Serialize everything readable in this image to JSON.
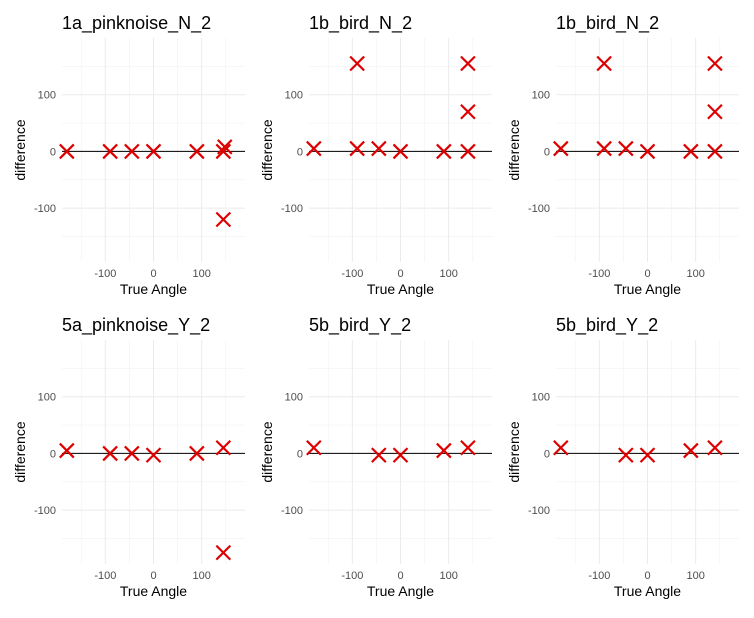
{
  "chart_data": [
    {
      "type": "scatter",
      "title": "1a_pinknoise_N_2",
      "xlabel": "True Angle",
      "ylabel": "difference",
      "xlim": [
        -190,
        190
      ],
      "ylim": [
        -195,
        200
      ],
      "x_ticks": [
        -100,
        0,
        100
      ],
      "y_ticks": [
        -100,
        0,
        100
      ],
      "reference_line_y": 0,
      "marker": "x",
      "marker_color": "#dd0000",
      "points": [
        {
          "x": -180,
          "y": 0
        },
        {
          "x": -90,
          "y": 0
        },
        {
          "x": -45,
          "y": 0
        },
        {
          "x": 0,
          "y": 0
        },
        {
          "x": 90,
          "y": 0
        },
        {
          "x": 145,
          "y": 0
        },
        {
          "x": 148,
          "y": 8
        },
        {
          "x": 145,
          "y": -120
        }
      ]
    },
    {
      "type": "scatter",
      "title": "1b_bird_N_2",
      "xlabel": "True Angle",
      "ylabel": "difference",
      "xlim": [
        -190,
        190
      ],
      "ylim": [
        -195,
        200
      ],
      "x_ticks": [
        -100,
        0,
        100
      ],
      "y_ticks": [
        -100,
        0,
        100
      ],
      "reference_line_y": 0,
      "marker": "x",
      "marker_color": "#dd0000",
      "points": [
        {
          "x": -180,
          "y": 5
        },
        {
          "x": -90,
          "y": 155
        },
        {
          "x": -90,
          "y": 5
        },
        {
          "x": -45,
          "y": 5
        },
        {
          "x": 0,
          "y": 0
        },
        {
          "x": 90,
          "y": 0
        },
        {
          "x": 140,
          "y": 155
        },
        {
          "x": 140,
          "y": 70
        },
        {
          "x": 140,
          "y": 0
        }
      ]
    },
    {
      "type": "scatter",
      "title": "1b_bird_N_2",
      "xlabel": "True Angle",
      "ylabel": "difference",
      "xlim": [
        -190,
        190
      ],
      "ylim": [
        -195,
        200
      ],
      "x_ticks": [
        -100,
        0,
        100
      ],
      "y_ticks": [
        -100,
        0,
        100
      ],
      "reference_line_y": 0,
      "marker": "x",
      "marker_color": "#dd0000",
      "points": [
        {
          "x": -180,
          "y": 5
        },
        {
          "x": -90,
          "y": 155
        },
        {
          "x": -90,
          "y": 5
        },
        {
          "x": -45,
          "y": 5
        },
        {
          "x": 0,
          "y": 0
        },
        {
          "x": 90,
          "y": 0
        },
        {
          "x": 140,
          "y": 155
        },
        {
          "x": 140,
          "y": 70
        },
        {
          "x": 140,
          "y": 0
        }
      ]
    },
    {
      "type": "scatter",
      "title": "5a_pinknoise_Y_2",
      "xlabel": "True Angle",
      "ylabel": "difference",
      "xlim": [
        -190,
        190
      ],
      "ylim": [
        -195,
        200
      ],
      "x_ticks": [
        -100,
        0,
        100
      ],
      "y_ticks": [
        -100,
        0,
        100
      ],
      "reference_line_y": 0,
      "marker": "x",
      "marker_color": "#dd0000",
      "points": [
        {
          "x": -180,
          "y": 5
        },
        {
          "x": -90,
          "y": 0
        },
        {
          "x": -45,
          "y": 0
        },
        {
          "x": 0,
          "y": -3
        },
        {
          "x": 90,
          "y": 0
        },
        {
          "x": 145,
          "y": 10
        },
        {
          "x": 145,
          "y": -175
        }
      ]
    },
    {
      "type": "scatter",
      "title": "5b_bird_Y_2",
      "xlabel": "True Angle",
      "ylabel": "difference",
      "xlim": [
        -190,
        190
      ],
      "ylim": [
        -195,
        200
      ],
      "x_ticks": [
        -100,
        0,
        100
      ],
      "y_ticks": [
        -100,
        0,
        100
      ],
      "reference_line_y": 0,
      "marker": "x",
      "marker_color": "#dd0000",
      "points": [
        {
          "x": -180,
          "y": 10
        },
        {
          "x": -45,
          "y": -3
        },
        {
          "x": 0,
          "y": -3
        },
        {
          "x": 90,
          "y": 5
        },
        {
          "x": 140,
          "y": 10
        }
      ]
    },
    {
      "type": "scatter",
      "title": "5b_bird_Y_2",
      "xlabel": "True Angle",
      "ylabel": "difference",
      "xlim": [
        -190,
        190
      ],
      "ylim": [
        -195,
        200
      ],
      "x_ticks": [
        -100,
        0,
        100
      ],
      "y_ticks": [
        -100,
        0,
        100
      ],
      "reference_line_y": 0,
      "marker": "x",
      "marker_color": "#dd0000",
      "points": [
        {
          "x": -180,
          "y": 10
        },
        {
          "x": -45,
          "y": -3
        },
        {
          "x": 0,
          "y": -3
        },
        {
          "x": 90,
          "y": 5
        },
        {
          "x": 140,
          "y": 10
        }
      ]
    }
  ]
}
